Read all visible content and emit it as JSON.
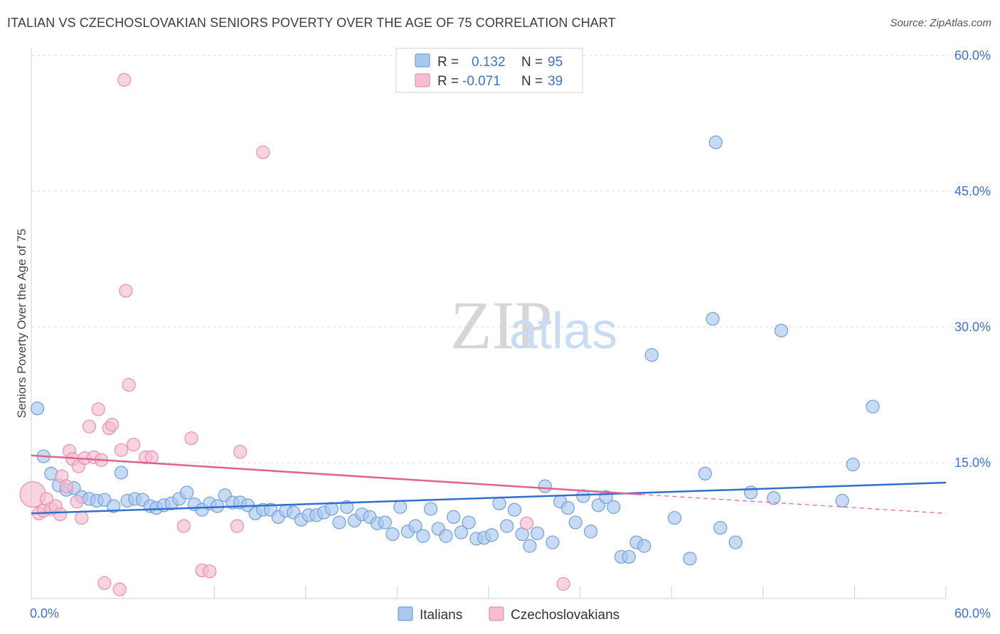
{
  "title": "ITALIAN VS CZECHOSLOVAKIAN SENIORS POVERTY OVER THE AGE OF 75 CORRELATION CHART",
  "source": "Source: ZipAtlas.com",
  "watermark": {
    "zip": "ZIP",
    "atlas": "atlas"
  },
  "colors": {
    "italians_fill": "#a9c8f0",
    "italians_stroke": "#6f9fdc",
    "italians_line": "#2f6fcf",
    "czech_fill": "#f6bcd0",
    "czech_stroke": "#e98fb0",
    "czech_line": "#e0608e",
    "tick": "#3a74d0",
    "grid": "#dddddd"
  },
  "legend": {
    "rows": [
      {
        "r_label": "R =",
        "r_value": "0.132",
        "n_label": "N =",
        "n_value": "95"
      },
      {
        "r_label": "R =",
        "r_value": "-0.071",
        "n_label": "N =",
        "n_value": "39"
      }
    ]
  },
  "bottom_legend": [
    "Italians",
    "Czechoslovakians"
  ],
  "chart_data": {
    "type": "scatter",
    "ylabel": "Seniors Poverty Over the Age of 75",
    "xlim": [
      0,
      60
    ],
    "ylim": [
      0,
      60
    ],
    "x_tick_labels": [
      "0.0%",
      "60.0%"
    ],
    "y_ticks": [
      15,
      30,
      45,
      60
    ],
    "y_tick_labels": [
      "15.0%",
      "30.0%",
      "45.0%",
      "60.0%"
    ],
    "grid": true,
    "legend_position": "top-center",
    "series": [
      {
        "name": "Italians",
        "trend": {
          "x": [
            0,
            60
          ],
          "y": [
            9.4,
            12.8
          ]
        },
        "points": [
          [
            0.4,
            21
          ],
          [
            0.8,
            15.7
          ],
          [
            1.3,
            13.8
          ],
          [
            1.8,
            12.5
          ],
          [
            2.3,
            12
          ],
          [
            2.8,
            12.2
          ],
          [
            3.3,
            11.2
          ],
          [
            3.8,
            11
          ],
          [
            4.3,
            10.8
          ],
          [
            4.8,
            10.9
          ],
          [
            5.4,
            10.2
          ],
          [
            5.9,
            13.9
          ],
          [
            6.3,
            10.8
          ],
          [
            6.8,
            11
          ],
          [
            7.3,
            10.9
          ],
          [
            7.8,
            10.2
          ],
          [
            8.2,
            10
          ],
          [
            8.7,
            10.3
          ],
          [
            9.2,
            10.5
          ],
          [
            9.7,
            11
          ],
          [
            10.2,
            11.7
          ],
          [
            10.7,
            10.4
          ],
          [
            11.2,
            9.8
          ],
          [
            11.7,
            10.5
          ],
          [
            12.2,
            10.2
          ],
          [
            12.7,
            11.4
          ],
          [
            13.2,
            10.6
          ],
          [
            13.7,
            10.6
          ],
          [
            14.2,
            10.3
          ],
          [
            14.7,
            9.4
          ],
          [
            15.2,
            9.8
          ],
          [
            15.7,
            9.8
          ],
          [
            16.2,
            9
          ],
          [
            16.7,
            9.7
          ],
          [
            17.2,
            9.5
          ],
          [
            17.7,
            8.7
          ],
          [
            18.2,
            9.2
          ],
          [
            18.7,
            9.2
          ],
          [
            19.2,
            9.5
          ],
          [
            19.7,
            9.9
          ],
          [
            20.2,
            8.4
          ],
          [
            20.7,
            10.1
          ],
          [
            21.2,
            8.6
          ],
          [
            21.7,
            9.3
          ],
          [
            22.2,
            9
          ],
          [
            22.7,
            8.3
          ],
          [
            23.2,
            8.4
          ],
          [
            23.7,
            7.1
          ],
          [
            24.2,
            10.1
          ],
          [
            24.7,
            7.4
          ],
          [
            25.2,
            8
          ],
          [
            25.7,
            6.9
          ],
          [
            26.2,
            9.9
          ],
          [
            26.7,
            7.7
          ],
          [
            27.2,
            6.9
          ],
          [
            27.7,
            9
          ],
          [
            28.2,
            7.3
          ],
          [
            28.7,
            8.4
          ],
          [
            29.2,
            6.6
          ],
          [
            29.7,
            6.7
          ],
          [
            30.2,
            7
          ],
          [
            30.7,
            10.5
          ],
          [
            31.2,
            8
          ],
          [
            31.7,
            9.8
          ],
          [
            32.2,
            7.1
          ],
          [
            32.7,
            5.8
          ],
          [
            33.2,
            7.2
          ],
          [
            33.7,
            12.4
          ],
          [
            34.2,
            6.2
          ],
          [
            34.7,
            10.7
          ],
          [
            35.2,
            10
          ],
          [
            35.7,
            8.4
          ],
          [
            36.2,
            11.3
          ],
          [
            36.7,
            7.4
          ],
          [
            37.2,
            10.3
          ],
          [
            37.7,
            11.2
          ],
          [
            38.2,
            10.1
          ],
          [
            38.7,
            4.6
          ],
          [
            39.2,
            4.6
          ],
          [
            39.7,
            6.2
          ],
          [
            40.2,
            5.8
          ],
          [
            40.7,
            26.9
          ],
          [
            42.2,
            8.9
          ],
          [
            43.2,
            4.4
          ],
          [
            44.2,
            13.8
          ],
          [
            44.7,
            30.9
          ],
          [
            44.9,
            50.4
          ],
          [
            45.2,
            7.8
          ],
          [
            46.2,
            6.2
          ],
          [
            47.2,
            11.7
          ],
          [
            48.7,
            11.1
          ],
          [
            49.2,
            29.6
          ],
          [
            53.2,
            10.8
          ],
          [
            53.9,
            14.8
          ],
          [
            55.2,
            21.2
          ]
        ]
      },
      {
        "name": "Czechoslovakians",
        "trend": {
          "x": [
            0,
            40
          ],
          "y": [
            15.8,
            11.5
          ]
        },
        "trend_dashed": {
          "x": [
            40,
            60
          ],
          "y": [
            11.5,
            9.4
          ]
        },
        "points": [
          [
            0.1,
            11.5
          ],
          [
            0.5,
            9.4
          ],
          [
            0.8,
            9.7
          ],
          [
            1,
            11
          ],
          [
            1.3,
            9.9
          ],
          [
            1.6,
            10.2
          ],
          [
            1.9,
            9.3
          ],
          [
            2,
            13.5
          ],
          [
            2.3,
            12.4
          ],
          [
            2.5,
            16.3
          ],
          [
            2.7,
            15.4
          ],
          [
            3,
            10.7
          ],
          [
            3.1,
            14.6
          ],
          [
            3.3,
            8.9
          ],
          [
            3.5,
            15.5
          ],
          [
            3.8,
            19
          ],
          [
            4.1,
            15.6
          ],
          [
            4.4,
            20.9
          ],
          [
            4.6,
            15.3
          ],
          [
            4.8,
            1.7
          ],
          [
            5.1,
            18.8
          ],
          [
            5.3,
            19.2
          ],
          [
            5.8,
            1
          ],
          [
            5.9,
            16.4
          ],
          [
            6.1,
            57.3
          ],
          [
            6.2,
            34
          ],
          [
            6.4,
            23.6
          ],
          [
            6.7,
            17
          ],
          [
            7.5,
            15.6
          ],
          [
            7.9,
            15.6
          ],
          [
            10,
            8
          ],
          [
            10.5,
            17.7
          ],
          [
            11.2,
            3.1
          ],
          [
            11.7,
            3
          ],
          [
            13.5,
            8
          ],
          [
            13.7,
            16.2
          ],
          [
            15.2,
            49.3
          ],
          [
            32.5,
            8.3
          ],
          [
            34.9,
            1.6
          ]
        ]
      }
    ]
  }
}
